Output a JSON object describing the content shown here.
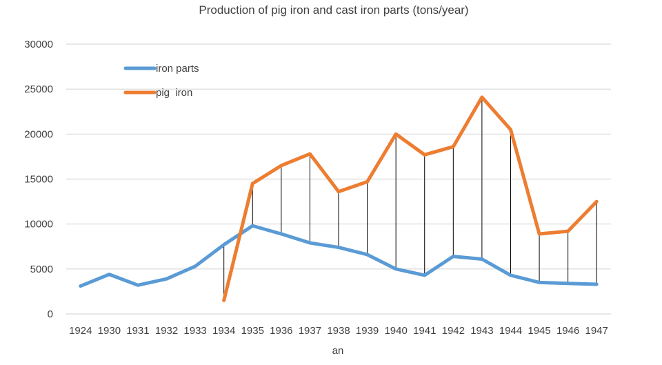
{
  "chart_data": {
    "type": "line",
    "title": "Production of pig iron and cast iron parts (tons/year)",
    "xlabel": "an",
    "ylabel": "",
    "ylim": [
      0,
      30000
    ],
    "yticks": [
      0,
      5000,
      10000,
      15000,
      20000,
      25000,
      30000
    ],
    "grid": true,
    "legend_position": "top-left",
    "categories": [
      "1924",
      "1930",
      "1931",
      "1932",
      "1933",
      "1934",
      "1935",
      "1936",
      "1937",
      "1938",
      "1939",
      "1940",
      "1941",
      "1942",
      "1943",
      "1944",
      "1945",
      "1946",
      "1947"
    ],
    "series": [
      {
        "name": "iron parts",
        "color": "#5B9BD5",
        "values": [
          3100,
          4400,
          3200,
          3900,
          5300,
          7700,
          9800,
          8900,
          7900,
          7400,
          6600,
          5000,
          4300,
          6400,
          6100,
          4300,
          3500,
          3400,
          3300
        ]
      },
      {
        "name": "pig  iron",
        "color": "#ED7D31",
        "values": [
          null,
          null,
          null,
          null,
          null,
          1500,
          14500,
          16500,
          17800,
          13600,
          14700,
          20000,
          17700,
          18600,
          24100,
          20500,
          8900,
          9200,
          12500
        ]
      }
    ],
    "drop_lines": true
  }
}
